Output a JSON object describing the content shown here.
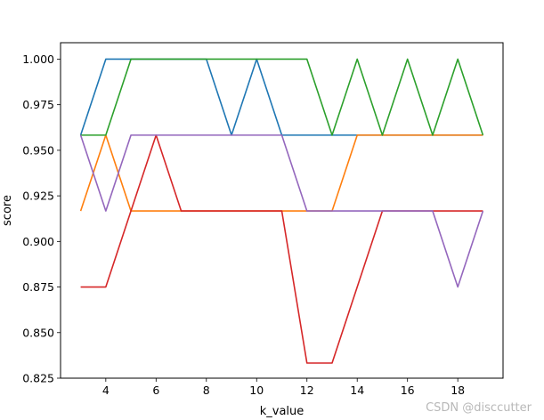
{
  "chart_data": {
    "type": "line",
    "title": "",
    "xlabel": "k_value",
    "ylabel": "score",
    "xlim": [
      2.2,
      19.8
    ],
    "ylim": [
      0.825,
      1.009
    ],
    "xticks": [
      4,
      6,
      8,
      10,
      12,
      14,
      16,
      18
    ],
    "yticks": [
      0.825,
      0.85,
      0.875,
      0.9,
      0.925,
      0.95,
      0.975,
      1.0
    ],
    "grid": false,
    "x": [
      3,
      4,
      5,
      6,
      7,
      8,
      9,
      10,
      11,
      12,
      13,
      14,
      15,
      16,
      17,
      18,
      19
    ],
    "series": [
      {
        "color": "#1f77b4",
        "values": [
          0.9583,
          1.0,
          1.0,
          1.0,
          1.0,
          1.0,
          0.9583,
          1.0,
          0.9583,
          0.9583,
          0.9583,
          0.9583,
          0.9583,
          0.9583,
          0.9583,
          0.9583,
          0.9583
        ]
      },
      {
        "color": "#ff7f0e",
        "values": [
          0.9167,
          0.9583,
          0.9167,
          0.9167,
          0.9167,
          0.9167,
          0.9167,
          0.9167,
          0.9167,
          0.9167,
          0.9167,
          0.9583,
          0.9583,
          0.9583,
          0.9583,
          0.9583,
          0.9583
        ]
      },
      {
        "color": "#2ca02c",
        "values": [
          0.9583,
          0.9583,
          1.0,
          1.0,
          1.0,
          1.0,
          1.0,
          1.0,
          1.0,
          1.0,
          0.9583,
          1.0,
          0.9583,
          1.0,
          0.9583,
          1.0,
          0.9583
        ]
      },
      {
        "color": "#d62728",
        "values": [
          0.875,
          0.875,
          0.9167,
          0.9583,
          0.9167,
          0.9167,
          0.9167,
          0.9167,
          0.9167,
          0.8333,
          0.8333,
          0.875,
          0.9167,
          0.9167,
          0.9167,
          0.9167,
          0.9167
        ]
      },
      {
        "color": "#9467bd",
        "values": [
          0.9583,
          0.9167,
          0.9583,
          0.9583,
          0.9583,
          0.9583,
          0.9583,
          0.9583,
          0.9583,
          0.9167,
          0.9167,
          0.9167,
          0.9167,
          0.9167,
          0.9167,
          0.875,
          0.9167
        ]
      }
    ]
  },
  "watermark": "CSDN @disccutter"
}
